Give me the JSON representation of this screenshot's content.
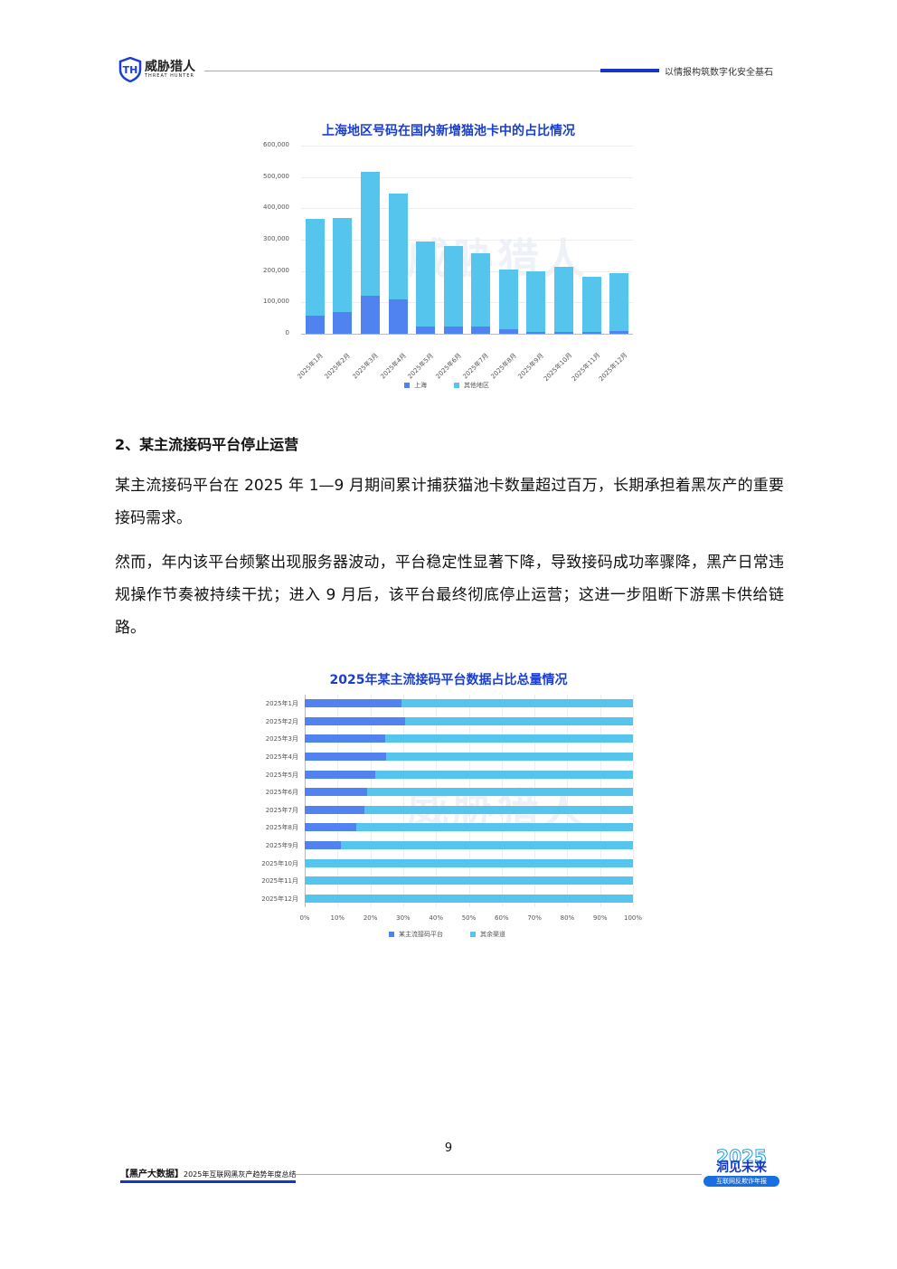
{
  "header": {
    "brand": "威胁猎人",
    "brand_en": "THREAT HUNTER",
    "slogan": "以情报构筑数字化安全基石"
  },
  "section": {
    "heading": "2、某主流接码平台停止运营",
    "paragraphs": [
      "某主流接码平台在 2025 年 1—9 月期间累计捕获猫池卡数量超过百万，长期承担着黑灰产的重要接码需求。",
      "然而，年内该平台频繁出现服务器波动，平台稳定性显著下降，导致接码成功率骤降，黑产日常违规操作节奏被持续干扰；进入 9 月后，该平台最终彻底停止运营；这进一步阻断下游黑卡供给链路。"
    ]
  },
  "watermark": "威胁猎人",
  "chart_data": [
    {
      "type": "bar",
      "stacked": true,
      "title": "上海地区号码在国内新增猫池卡中的占比情况",
      "categories": [
        "2025年1月",
        "2025年2月",
        "2025年3月",
        "2025年4月",
        "2025年5月",
        "2025年6月",
        "2025年7月",
        "2025年8月",
        "2025年9月",
        "2025年10月",
        "2025年11月",
        "2025年12月"
      ],
      "series": [
        {
          "name": "上海",
          "color": "#5082f0",
          "values": [
            57000,
            70000,
            120000,
            111000,
            24000,
            22000,
            22000,
            13000,
            5000,
            7000,
            7000,
            10000
          ]
        },
        {
          "name": "其他地区",
          "color": "#55c5ee",
          "values": [
            308000,
            300000,
            397000,
            335000,
            270000,
            259000,
            236000,
            193000,
            194000,
            206000,
            174000,
            183000
          ]
        }
      ],
      "yticks": [
        "0",
        "100,000",
        "200,000",
        "300,000",
        "400,000",
        "500,000",
        "600,000"
      ],
      "ylim": [
        0,
        600000
      ],
      "grid": true,
      "legend": "bottom"
    },
    {
      "type": "bar",
      "orientation": "horizontal",
      "stacked_percent": true,
      "title": "2025年某主流接码平台数据占比总量情况",
      "categories": [
        "2025年1月",
        "2025年2月",
        "2025年3月",
        "2025年4月",
        "2025年5月",
        "2025年6月",
        "2025年7月",
        "2025年8月",
        "2025年9月",
        "2025年10月",
        "2025年11月",
        "2025年12月"
      ],
      "series": [
        {
          "name": "某主流接码平台",
          "color": "#5082f0",
          "values": [
            29.5,
            30.5,
            24.6,
            24.7,
            21.5,
            19,
            18.1,
            15.6,
            11,
            0,
            0,
            0
          ]
        },
        {
          "name": "其余渠道",
          "color": "#55c5ee",
          "values": [
            70.5,
            69.5,
            75.4,
            75.3,
            78.5,
            81,
            81.9,
            84.4,
            89,
            100,
            100,
            100
          ]
        }
      ],
      "xticks": [
        "0%",
        "10%",
        "20%",
        "30%",
        "40%",
        "50%",
        "60%",
        "70%",
        "80%",
        "90%",
        "100%"
      ],
      "xlim": [
        0,
        100
      ],
      "grid": true,
      "legend": "bottom"
    }
  ],
  "footer": {
    "page": "9",
    "report_tag": "【黑产大数据】",
    "report_title": "2025年互联网黑灰产趋势年度总结",
    "logo_year": "2025",
    "logo_title": "洞见未来",
    "logo_sub": "互联网反欺诈年报"
  }
}
